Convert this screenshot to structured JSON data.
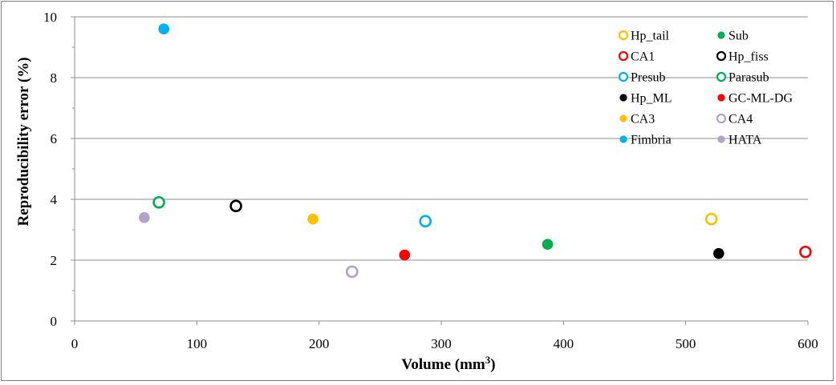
{
  "chart_data": {
    "type": "scatter",
    "title": "",
    "xlabel": "Volume (mm",
    "xlabel_sup": "3",
    "xlabel_end": ")",
    "ylabel": "Reproducibility error  (%)",
    "xlim": [
      0,
      600
    ],
    "ylim": [
      0,
      10
    ],
    "x_ticks": [
      "0",
      "100",
      "200",
      "300",
      "400",
      "500",
      "600"
    ],
    "y_ticks": [
      "0",
      "2",
      "4",
      "6",
      "8",
      "10"
    ],
    "grid": "horizontal",
    "legend_position": "top-right",
    "series": [
      {
        "name": "Hp_tail",
        "color": "#FFC000",
        "marker": "hollow",
        "x": 521,
        "y": 3.35
      },
      {
        "name": "Sub",
        "color": "#00B050",
        "marker": "filled",
        "x": 387,
        "y": 2.52
      },
      {
        "name": "CA1",
        "color": "#FF0000",
        "marker": "hollow",
        "x": 598,
        "y": 2.27
      },
      {
        "name": "Hp_fiss",
        "color": "#000000",
        "marker": "hollow",
        "x": 132,
        "y": 3.78
      },
      {
        "name": "Presub",
        "color": "#00B0F0",
        "marker": "hollow",
        "x": 287,
        "y": 3.28
      },
      {
        "name": "Parasub",
        "color": "#00B050",
        "marker": "hollow",
        "x": 69,
        "y": 3.9
      },
      {
        "name": "Hp_ML",
        "color": "#000000",
        "marker": "filled",
        "x": 527,
        "y": 2.22
      },
      {
        "name": "GC-ML-DG",
        "color": "#FF0000",
        "marker": "filled",
        "x": 270,
        "y": 2.17
      },
      {
        "name": "CA3",
        "color": "#FFC000",
        "marker": "filled",
        "x": 195,
        "y": 3.35
      },
      {
        "name": "CA4",
        "color": "#B3A2C7",
        "marker": "hollow",
        "x": 227,
        "y": 1.62
      },
      {
        "name": "Fimbria",
        "color": "#00B0F0",
        "marker": "filled",
        "x": 73,
        "y": 9.6
      },
      {
        "name": "HATA",
        "color": "#B3A2C7",
        "marker": "filled",
        "x": 57,
        "y": 3.4
      }
    ]
  }
}
